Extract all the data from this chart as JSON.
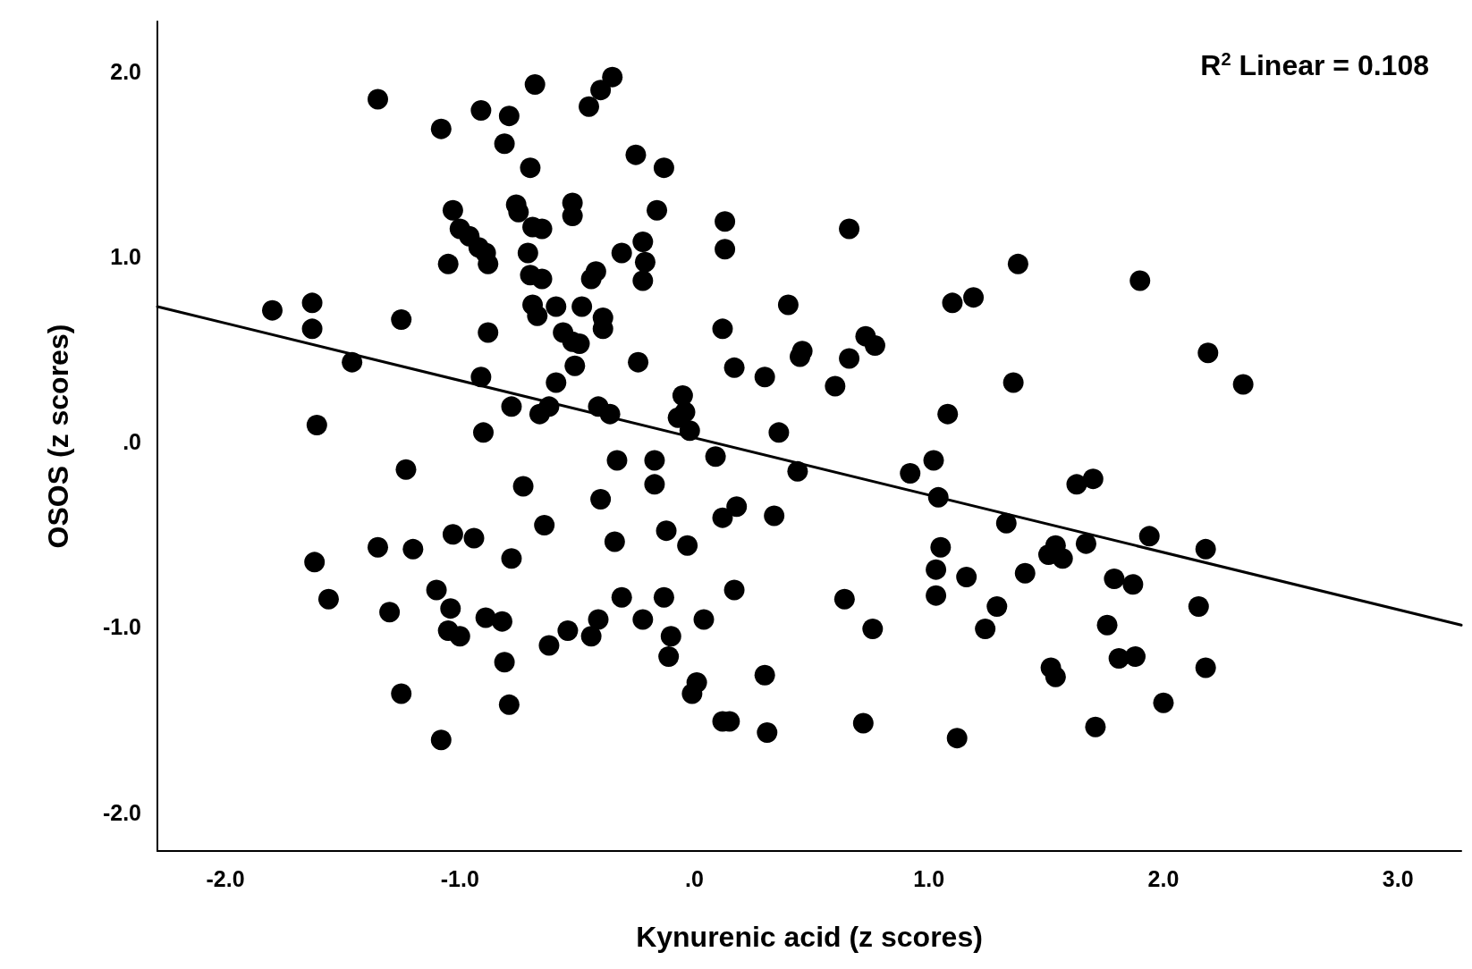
{
  "chart_data": {
    "type": "scatter",
    "xlabel": "Kynurenic acid (z scores)",
    "ylabel": "OSOS (z scores)",
    "annotations": [
      "R$^{2}$ Linear = 0.108"
    ],
    "xlim": [
      -2.29,
      3.27
    ],
    "ylim": [
      -2.21,
      2.27
    ],
    "xticks": [
      {
        "value": -2,
        "label": "-2.0"
      },
      {
        "value": -1,
        "label": "-1.0"
      },
      {
        "value": 0,
        "label": ".0"
      },
      {
        "value": 1,
        "label": "1.0"
      },
      {
        "value": 2,
        "label": "2.0"
      },
      {
        "value": 3,
        "label": "3.0"
      }
    ],
    "yticks": [
      {
        "value": -2,
        "label": "-2.0"
      },
      {
        "value": -1,
        "label": "-1.0"
      },
      {
        "value": 0,
        "label": ".0"
      },
      {
        "value": 1,
        "label": "1.0"
      },
      {
        "value": 2,
        "label": "2.0"
      }
    ],
    "grid": false,
    "marker": "circle",
    "series": [
      {
        "color": "#000000",
        "x": [
          -1.8,
          -1.63,
          -1.63,
          -1.61,
          -1.62,
          -1.56,
          -1.46,
          -1.35,
          -1.35,
          -1.3,
          -1.25,
          -1.23,
          -1.2,
          -1.25,
          -1.1,
          -1.08,
          -1.08,
          -1.05,
          -1.04,
          -1.05,
          -1.03,
          -1.03,
          -1.0,
          -1.0,
          -0.96,
          -0.94,
          -0.92,
          -0.91,
          -0.91,
          -0.9,
          -0.89,
          -0.88,
          -0.88,
          -0.89,
          -0.82,
          -0.81,
          -0.81,
          -0.79,
          -0.79,
          -0.78,
          -0.78,
          -0.76,
          -0.75,
          -0.73,
          -0.71,
          -0.7,
          -0.7,
          -0.69,
          -0.68,
          -0.69,
          -0.67,
          -0.66,
          -0.65,
          -0.65,
          -0.64,
          -0.62,
          -0.62,
          -0.59,
          -0.59,
          -0.56,
          -0.54,
          -0.52,
          -0.52,
          -0.52,
          -0.51,
          -0.49,
          -0.48,
          -0.45,
          -0.44,
          -0.44,
          -0.42,
          -0.4,
          -0.41,
          -0.4,
          -0.39,
          -0.39,
          -0.41,
          -0.36,
          -0.35,
          -0.34,
          -0.33,
          -0.31,
          -0.31,
          -0.24,
          -0.25,
          -0.22,
          -0.22,
          -0.21,
          -0.22,
          -0.17,
          -0.17,
          -0.16,
          -0.13,
          -0.12,
          -0.13,
          -0.11,
          -0.1,
          -0.07,
          -0.05,
          -0.03,
          -0.04,
          -0.02,
          -0.01,
          0.01,
          0.04,
          0.09,
          0.12,
          0.12,
          0.13,
          0.13,
          0.12,
          0.15,
          0.17,
          0.17,
          0.18,
          0.3,
          0.3,
          0.31,
          0.34,
          0.36,
          0.4,
          0.44,
          0.45,
          0.46,
          0.6,
          0.64,
          0.66,
          0.66,
          0.72,
          0.73,
          0.77,
          0.76,
          0.92,
          1.02,
          1.03,
          1.03,
          1.04,
          1.05,
          1.08,
          1.1,
          1.12,
          1.16,
          1.19,
          1.24,
          1.29,
          1.33,
          1.36,
          1.38,
          1.41,
          1.51,
          1.52,
          1.54,
          1.54,
          1.57,
          1.63,
          1.67,
          1.7,
          1.71,
          1.76,
          1.79,
          1.81,
          1.87,
          1.88,
          1.9,
          1.94,
          2.0,
          2.15,
          2.18,
          2.18,
          2.19,
          2.34
        ],
        "values": [
          0.71,
          0.75,
          0.61,
          0.09,
          -0.65,
          -0.85,
          0.43,
          1.85,
          -0.57,
          -0.92,
          0.66,
          -0.15,
          -0.58,
          -1.36,
          -0.8,
          1.69,
          -1.61,
          0.96,
          -0.9,
          -1.02,
          -0.5,
          1.25,
          -1.05,
          1.15,
          1.11,
          -0.52,
          1.05,
          1.79,
          0.35,
          0.05,
          1.02,
          0.59,
          0.96,
          -0.95,
          -0.97,
          -1.19,
          1.61,
          1.76,
          -1.42,
          -0.63,
          0.19,
          1.28,
          1.24,
          -0.24,
          1.02,
          1.48,
          0.9,
          1.16,
          1.93,
          0.74,
          0.68,
          0.15,
          1.15,
          0.88,
          -0.45,
          -1.1,
          0.19,
          0.73,
          0.32,
          0.59,
          -1.02,
          0.54,
          1.29,
          1.22,
          0.41,
          0.53,
          0.73,
          1.81,
          -1.05,
          0.88,
          0.92,
          -0.31,
          0.19,
          1.9,
          0.67,
          0.61,
          -0.96,
          0.15,
          1.97,
          -0.54,
          -0.1,
          -0.84,
          1.02,
          0.43,
          1.55,
          -0.96,
          1.08,
          0.97,
          0.87,
          -0.23,
          -0.1,
          1.25,
          1.48,
          -0.48,
          -0.84,
          -1.16,
          -1.05,
          0.13,
          0.25,
          -0.56,
          0.16,
          0.06,
          -1.36,
          -1.3,
          -0.96,
          -0.08,
          -0.41,
          0.61,
          1.19,
          1.04,
          -1.51,
          -1.51,
          -0.8,
          0.4,
          -0.35,
          0.35,
          -1.26,
          -1.57,
          -0.4,
          0.05,
          0.74,
          -0.16,
          0.46,
          0.49,
          0.3,
          -0.85,
          0.45,
          1.15,
          -1.52,
          0.57,
          0.52,
          -1.01,
          -0.17,
          -0.1,
          -0.69,
          -0.83,
          -0.3,
          -0.57,
          0.15,
          0.75,
          -1.6,
          -0.73,
          0.78,
          -1.01,
          -0.89,
          -0.44,
          0.32,
          0.96,
          -0.71,
          -0.61,
          -1.22,
          -1.27,
          -0.56,
          -0.63,
          -0.23,
          -0.55,
          -0.2,
          -1.54,
          -0.99,
          -0.74,
          -1.17,
          -0.77,
          -1.16,
          0.87,
          -0.51,
          -1.41,
          -0.89,
          -0.58,
          -1.22,
          0.48,
          0.31
        ]
      },
      {
        "type": "line",
        "color": "#000000",
        "marker": "none",
        "line_style": "solid",
        "x": [
          -2.29,
          3.27
        ],
        "values": [
          0.73,
          -0.99
        ]
      }
    ]
  }
}
